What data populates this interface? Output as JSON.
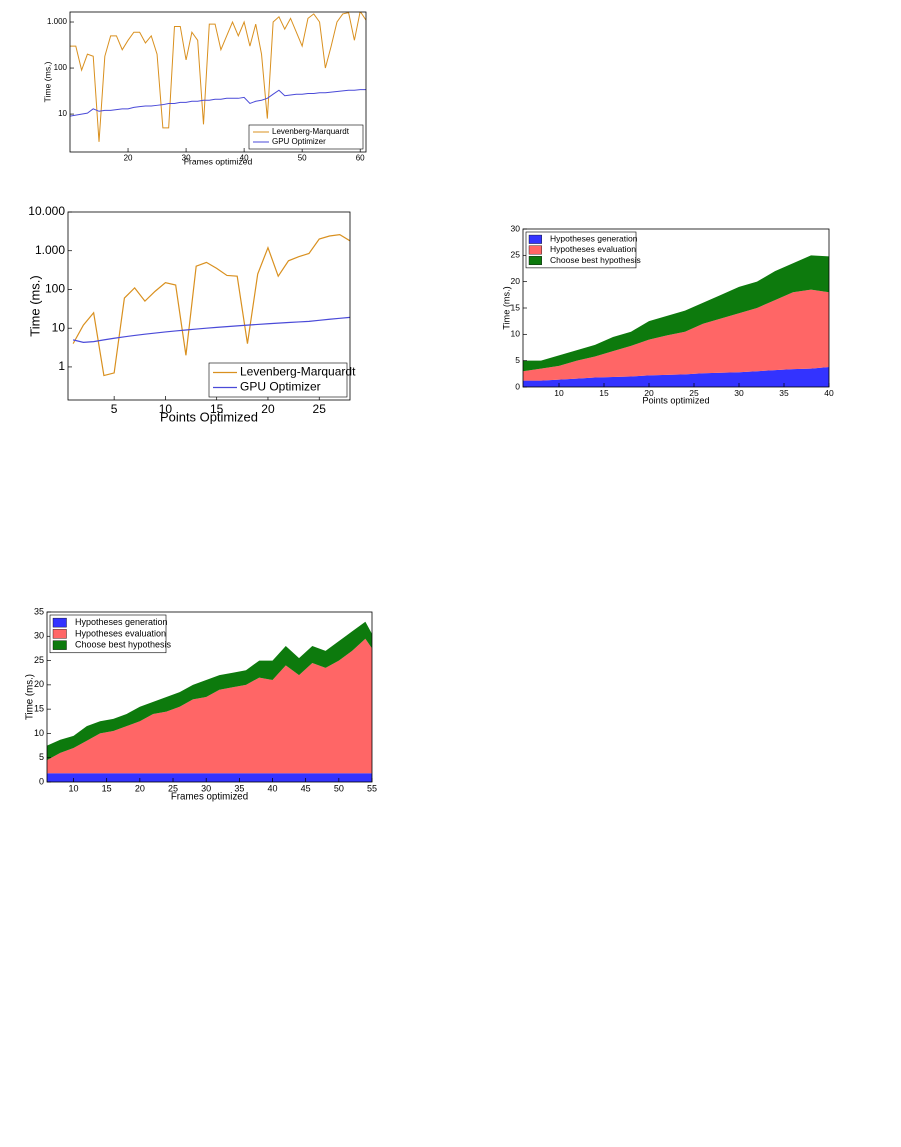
{
  "chart_data": [
    {
      "type": "line",
      "xlabel": "Frames optimized",
      "ylabel": "Time (ms.)",
      "yscale": "log",
      "legend": "lower right",
      "xlim": [
        10,
        61
      ],
      "ylim": [
        1.5,
        1650
      ],
      "xticks": [
        20,
        30,
        40,
        50,
        60
      ],
      "yticks": [
        10,
        100,
        {
          "value": 1000,
          "label": "1.000"
        }
      ],
      "x": [
        10,
        11,
        12,
        13,
        14,
        15,
        16,
        17,
        18,
        19,
        20,
        21,
        22,
        23,
        24,
        25,
        26,
        27,
        28,
        29,
        30,
        31,
        32,
        33,
        34,
        35,
        36,
        37,
        38,
        39,
        40,
        41,
        42,
        43,
        44,
        45,
        46,
        47,
        48,
        49,
        50,
        51,
        52,
        53,
        54,
        55,
        56,
        57,
        58,
        59,
        60,
        61
      ],
      "series": [
        {
          "name": "Levenberg-Marquardt",
          "color": "#d9901f",
          "values": [
            300,
            300,
            90,
            200,
            180,
            2.5,
            180,
            500,
            500,
            250,
            400,
            600,
            600,
            350,
            500,
            200,
            5,
            5,
            800,
            800,
            150,
            600,
            400,
            6,
            900,
            900,
            250,
            500,
            1000,
            500,
            1000,
            300,
            900,
            200,
            8,
            1000,
            1300,
            700,
            1200,
            600,
            300,
            1200,
            1500,
            1000,
            100,
            300,
            1000,
            1500,
            1600,
            400,
            1700,
            1100
          ]
        },
        {
          "name": "GPU Optimizer",
          "color": "#4a4ad8",
          "values": [
            9,
            9.5,
            10,
            10.5,
            13,
            11.5,
            12,
            12,
            12.5,
            13,
            13,
            14,
            14.5,
            15,
            15,
            15.5,
            16,
            17,
            17,
            18,
            18,
            19,
            19,
            20,
            20,
            21,
            21,
            22,
            22,
            22,
            23,
            17,
            19,
            20,
            22,
            27,
            33,
            25,
            26,
            27,
            27,
            28,
            28,
            29,
            29,
            30,
            31,
            32,
            33,
            33,
            34,
            34
          ]
        }
      ]
    },
    {
      "type": "line",
      "xlabel": "Points Optimized",
      "ylabel": "Time (ms.)",
      "yscale": "log",
      "legend": "lower right",
      "xlim": [
        0.5,
        28
      ],
      "ylim": [
        0.14,
        10000
      ],
      "xticks": [
        5,
        10,
        15,
        20,
        25
      ],
      "yticks": [
        1,
        10,
        100,
        {
          "value": 1000,
          "label": "1.000"
        },
        {
          "value": 10000,
          "label": "10.000"
        }
      ],
      "x": [
        1,
        2,
        3,
        4,
        5,
        6,
        7,
        8,
        9,
        10,
        11,
        12,
        13,
        14,
        15,
        16,
        17,
        18,
        19,
        20,
        21,
        22,
        23,
        24,
        25,
        26,
        27,
        28
      ],
      "series": [
        {
          "name": "Levenberg-Marquardt",
          "color": "#d9901f",
          "values": [
            4,
            12,
            25,
            0.6,
            0.7,
            60,
            110,
            50,
            90,
            150,
            130,
            2,
            400,
            500,
            350,
            230,
            220,
            4,
            250,
            1200,
            220,
            550,
            700,
            850,
            2000,
            2400,
            2600,
            1800
          ]
        },
        {
          "name": "GPU Optimizer",
          "color": "#4a4ad8",
          "values": [
            5,
            4.3,
            4.5,
            5,
            5.5,
            6,
            6.5,
            7,
            7.5,
            8,
            8.5,
            9,
            9.5,
            10,
            10.5,
            11,
            11.5,
            12,
            12.5,
            13,
            13.5,
            14,
            14.5,
            15,
            16,
            17,
            18,
            19
          ]
        }
      ]
    },
    {
      "type": "area",
      "xlabel": "Points optimized",
      "ylabel": "Time (ms.)",
      "legend": "upper left",
      "xlim": [
        6,
        40
      ],
      "ylim": [
        0,
        30
      ],
      "xticks": [
        10,
        15,
        20,
        25,
        30,
        35,
        40
      ],
      "yticks": [
        0,
        5,
        10,
        15,
        20,
        25,
        30
      ],
      "x": [
        6,
        8,
        10,
        12,
        14,
        16,
        18,
        20,
        22,
        24,
        26,
        28,
        30,
        32,
        34,
        36,
        38,
        40
      ],
      "series": [
        {
          "name": "Hypotheses generation",
          "color": "#3333ff",
          "values": [
            1.2,
            1.2,
            1.4,
            1.6,
            1.8,
            1.9,
            2.0,
            2.2,
            2.3,
            2.4,
            2.6,
            2.7,
            2.8,
            3.0,
            3.2,
            3.4,
            3.5,
            3.8
          ]
        },
        {
          "name": "Hypotheses evaluation",
          "color": "#ff6666",
          "values": [
            1.8,
            2.3,
            2.6,
            3.4,
            4.0,
            4.9,
            5.8,
            6.8,
            7.5,
            8.1,
            9.4,
            10.3,
            11.2,
            12.0,
            13.3,
            14.6,
            15.0,
            14.2
          ]
        },
        {
          "name": "Choose best hypothesis",
          "color": "#0d7a0d",
          "values": [
            2,
            1.5,
            2,
            2,
            2.2,
            2.7,
            2.7,
            3.5,
            3.7,
            4,
            4,
            4.5,
            5,
            5,
            5.5,
            5.5,
            6.5,
            6.8
          ]
        }
      ]
    },
    {
      "type": "area",
      "xlabel": "Frames optimized",
      "ylabel": "Time (ms.)",
      "legend": "upper left",
      "xlim": [
        6,
        55
      ],
      "ylim": [
        0,
        35
      ],
      "xticks": [
        10,
        15,
        20,
        25,
        30,
        35,
        40,
        45,
        50,
        55
      ],
      "yticks": [
        0,
        5,
        10,
        15,
        20,
        25,
        30,
        35
      ],
      "x": [
        6,
        8,
        10,
        12,
        14,
        16,
        18,
        20,
        22,
        24,
        26,
        28,
        30,
        32,
        34,
        36,
        38,
        40,
        42,
        44,
        46,
        48,
        50,
        52,
        54,
        55
      ],
      "series": [
        {
          "name": "Hypotheses generation",
          "color": "#3333ff",
          "values": [
            1.8,
            1.8,
            1.8,
            1.8,
            1.8,
            1.8,
            1.8,
            1.8,
            1.8,
            1.8,
            1.8,
            1.8,
            1.8,
            1.8,
            1.8,
            1.8,
            1.8,
            1.8,
            1.8,
            1.8,
            1.8,
            1.8,
            1.8,
            1.8,
            1.8,
            1.8
          ]
        },
        {
          "name": "Hypotheses evaluation",
          "color": "#ff6666",
          "values": [
            2.7,
            4.2,
            5.2,
            6.7,
            8.2,
            8.7,
            9.7,
            10.7,
            12.2,
            12.7,
            13.7,
            15.2,
            15.7,
            17.2,
            17.7,
            18.2,
            19.7,
            19.2,
            22.2,
            20.2,
            22.7,
            21.7,
            23.2,
            25.2,
            27.7,
            25.7
          ]
        },
        {
          "name": "Choose best hypothesis",
          "color": "#0d7a0d",
          "values": [
            3,
            2.7,
            2.5,
            3,
            2.5,
            2.5,
            2.5,
            3,
            2.5,
            3,
            3,
            3,
            3.5,
            3,
            3,
            3,
            3.5,
            4,
            4,
            3.5,
            3.5,
            3.5,
            4,
            4,
            3.5,
            3
          ]
        }
      ]
    }
  ]
}
